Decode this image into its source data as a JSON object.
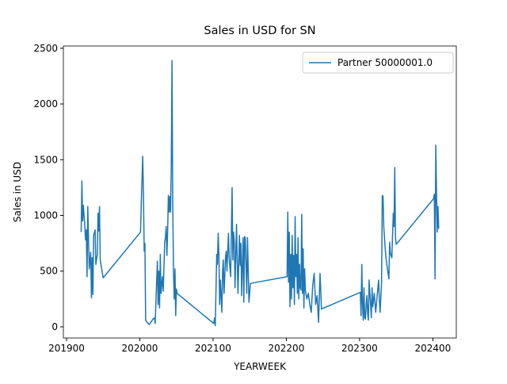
{
  "chart_data": {
    "type": "line",
    "title": "Sales in USD for SN",
    "xlabel": "YEARWEEK",
    "ylabel": "Sales in USD",
    "x": [
      201920,
      201921,
      201922,
      201923,
      201925,
      201926,
      201927,
      201928,
      201929,
      201931,
      201932,
      201933,
      201934,
      201935,
      201936,
      201937,
      201939,
      201940,
      201942,
      201943,
      201944,
      201945,
      201946,
      201947,
      201950,
      202001,
      202002,
      202004,
      202005,
      202006,
      202007,
      202008,
      202010,
      202013,
      202018,
      202020,
      202021,
      202024,
      202025,
      202026,
      202027,
      202028,
      202029,
      202030,
      202031,
      202032,
      202034,
      202035,
      202036,
      202037,
      202038,
      202039,
      202040,
      202041,
      202042,
      202043,
      202044,
      202045,
      202046,
      202047,
      202048,
      202049,
      202050,
      202051,
      202101,
      202102,
      202103,
      202105,
      202106,
      202107,
      202108,
      202109,
      202110,
      202112,
      202113,
      202114,
      202115,
      202117,
      202118,
      202119,
      202121,
      202122,
      202124,
      202126,
      202127,
      202128,
      202129,
      202130,
      202132,
      202133,
      202134,
      202136,
      202137,
      202138,
      202139,
      202141,
      202142,
      202143,
      202144,
      202146,
      202147,
      202149,
      202151,
      202201,
      202202,
      202203,
      202204,
      202205,
      202206,
      202207,
      202208,
      202209,
      202210,
      202211,
      202212,
      202213,
      202214,
      202215,
      202216,
      202217,
      202218,
      202219,
      202220,
      202221,
      202222,
      202223,
      202224,
      202225,
      202226,
      202228,
      202230,
      202232,
      202234,
      202236,
      202238,
      202240,
      202242,
      202244,
      202246,
      202248,
      202301,
      202302,
      202303,
      202304,
      202305,
      202306,
      202307,
      202308,
      202309,
      202310,
      202311,
      202312,
      202313,
      202314,
      202315,
      202316,
      202317,
      202318,
      202320,
      202322,
      202324,
      202326,
      202327,
      202328,
      202330,
      202331,
      202332,
      202333,
      202335,
      202336,
      202338,
      202340,
      202341,
      202342,
      202344,
      202346,
      202347,
      202348,
      202349,
      202350,
      202401,
      202402,
      202403,
      202404,
      202405,
      202406,
      202407,
      202408
    ],
    "series": [
      {
        "name": "Partner 50000001.0",
        "color": "#1f77b4",
        "values": [
          850,
          1310,
          950,
          1090,
          900,
          780,
          870,
          450,
          1080,
          520,
          600,
          670,
          260,
          620,
          290,
          820,
          870,
          560,
          650,
          1020,
          860,
          1080,
          600,
          560,
          440,
          850,
          1100,
          1530,
          1200,
          680,
          750,
          60,
          40,
          20,
          70,
          80,
          30,
          590,
          200,
          500,
          170,
          650,
          300,
          380,
          450,
          320,
          760,
          800,
          900,
          640,
          850,
          1180,
          1030,
          1170,
          1030,
          1450,
          2390,
          1100,
          500,
          250,
          520,
          100,
          340,
          300,
          30,
          80,
          10,
          650,
          560,
          840,
          650,
          200,
          420,
          130,
          500,
          600,
          300,
          620,
          680,
          500,
          840,
          620,
          450,
          1250,
          600,
          850,
          760,
          350,
          920,
          600,
          300,
          820,
          550,
          750,
          280,
          800,
          220,
          810,
          800,
          300,
          800,
          220,
          390,
          450,
          1030,
          400,
          850,
          180,
          650,
          250,
          820,
          350,
          640,
          200,
          990,
          450,
          650,
          300,
          800,
          250,
          560,
          350,
          330,
          1010,
          300,
          700,
          170,
          520,
          330,
          250,
          300,
          200,
          130,
          370,
          480,
          200,
          280,
          40,
          480,
          160,
          310,
          100,
          560,
          200,
          60,
          350,
          80,
          70,
          200,
          280,
          120,
          60,
          420,
          300,
          200,
          80,
          350,
          180,
          300,
          130,
          280,
          420,
          240,
          130,
          400,
          1180,
          1170,
          900,
          700,
          620,
          520,
          430,
          760,
          660,
          620,
          1020,
          900,
          1430,
          800,
          740,
          1150,
          1190,
          430,
          1630,
          1200,
          850,
          1080,
          880
        ]
      }
    ],
    "xlim": [
      201895.7,
      202432
    ],
    "ylim": [
      -100,
      2520
    ],
    "xticks": [
      201900,
      202000,
      202100,
      202200,
      202300,
      202400
    ],
    "yticks": [
      0,
      500,
      1000,
      1500,
      2000,
      2500
    ],
    "legend": "upper right"
  }
}
